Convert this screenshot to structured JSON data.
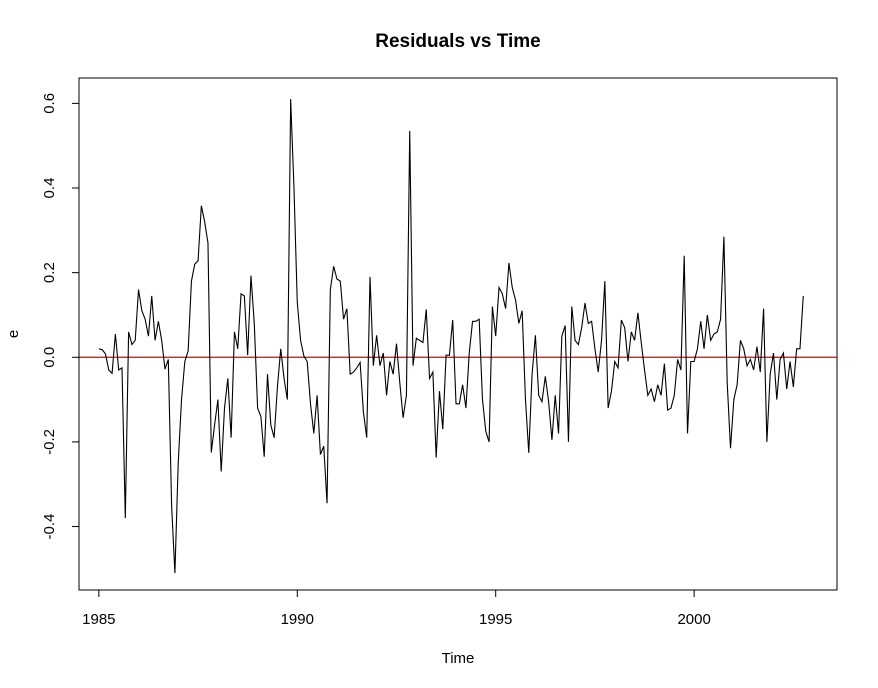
{
  "chart_data": {
    "type": "line",
    "title": "Residuals vs Time",
    "xlabel": "Time",
    "ylabel": "e",
    "xlim": [
      1984.5,
      2003.6
    ],
    "ylim": [
      -0.55,
      0.66
    ],
    "xticks": [
      1985,
      1990,
      1995,
      2000
    ],
    "xtick_labels": [
      "1985",
      "1990",
      "1995",
      "2000"
    ],
    "yticks": [
      -0.4,
      -0.2,
      0.0,
      0.2,
      0.4,
      0.6
    ],
    "ytick_labels": [
      "-0.4",
      "-0.2",
      "0.0",
      "0.2",
      "0.4",
      "0.6"
    ],
    "grid": false,
    "reference_line": {
      "y": 0,
      "color": "#e00000"
    },
    "line_color": "#000000",
    "series": [
      {
        "x_start": 1985.0,
        "x_step": 0.08333333,
        "values": [
          0.02,
          0.018,
          0.008,
          -0.03,
          -0.038,
          0.055,
          -0.03,
          -0.025,
          -0.38,
          0.06,
          0.03,
          0.04,
          0.16,
          0.11,
          0.09,
          0.05,
          0.145,
          0.04,
          0.085,
          0.04,
          -0.028,
          -0.005,
          -0.35,
          -0.51,
          -0.25,
          -0.1,
          -0.01,
          0.015,
          0.18,
          0.22,
          0.228,
          0.358,
          0.32,
          0.27,
          -0.225,
          -0.16,
          -0.1,
          -0.27,
          -0.12,
          -0.05,
          -0.19,
          0.06,
          0.02,
          0.15,
          0.145,
          0.005,
          0.193,
          0.08,
          -0.12,
          -0.14,
          -0.235,
          -0.04,
          -0.16,
          -0.19,
          -0.07,
          0.02,
          -0.05,
          -0.1,
          0.61,
          0.4,
          0.13,
          0.04,
          0.003,
          -0.01,
          -0.11,
          -0.18,
          -0.09,
          -0.23,
          -0.21,
          -0.345,
          0.16,
          0.215,
          0.185,
          0.18,
          0.09,
          0.115,
          -0.04,
          -0.035,
          -0.025,
          -0.012,
          -0.13,
          -0.19,
          0.19,
          -0.02,
          0.052,
          -0.02,
          0.01,
          -0.09,
          -0.01,
          -0.04,
          0.032,
          -0.06,
          -0.143,
          -0.09,
          0.535,
          -0.02,
          0.045,
          0.04,
          0.035,
          0.113,
          -0.05,
          -0.035,
          -0.237,
          -0.08,
          -0.17,
          0.005,
          0.005,
          0.088,
          -0.11,
          -0.11,
          -0.065,
          -0.12,
          0.01,
          0.085,
          0.085,
          0.09,
          -0.1,
          -0.175,
          -0.2,
          0.12,
          0.05,
          0.165,
          0.15,
          0.115,
          0.223,
          0.165,
          0.135,
          0.08,
          0.11,
          -0.1,
          -0.226,
          -0.04,
          0.052,
          -0.09,
          -0.105,
          -0.045,
          -0.105,
          -0.195,
          -0.09,
          -0.18,
          0.05,
          0.075,
          -0.2,
          0.12,
          0.04,
          0.03,
          0.07,
          0.128,
          0.08,
          0.085,
          0.02,
          -0.035,
          0.04,
          0.18,
          -0.12,
          -0.08,
          -0.01,
          -0.025,
          0.088,
          0.07,
          -0.01,
          0.06,
          0.04,
          0.105,
          0.035,
          -0.03,
          -0.09,
          -0.075,
          -0.105,
          -0.065,
          -0.09,
          -0.015,
          -0.125,
          -0.12,
          -0.09,
          -0.005,
          -0.03,
          0.24,
          -0.18,
          -0.01,
          -0.01,
          0.02,
          0.085,
          0.02,
          0.1,
          0.04,
          0.055,
          0.06,
          0.09,
          0.285,
          -0.06,
          -0.215,
          -0.1,
          -0.065,
          0.04,
          0.02,
          -0.02,
          -0.005,
          -0.03,
          0.025,
          -0.035,
          0.115,
          -0.2,
          -0.04,
          0.01,
          -0.1,
          -0.005,
          0.01,
          -0.075,
          -0.01,
          -0.07,
          0.02,
          0.02,
          0.145
        ]
      }
    ]
  }
}
